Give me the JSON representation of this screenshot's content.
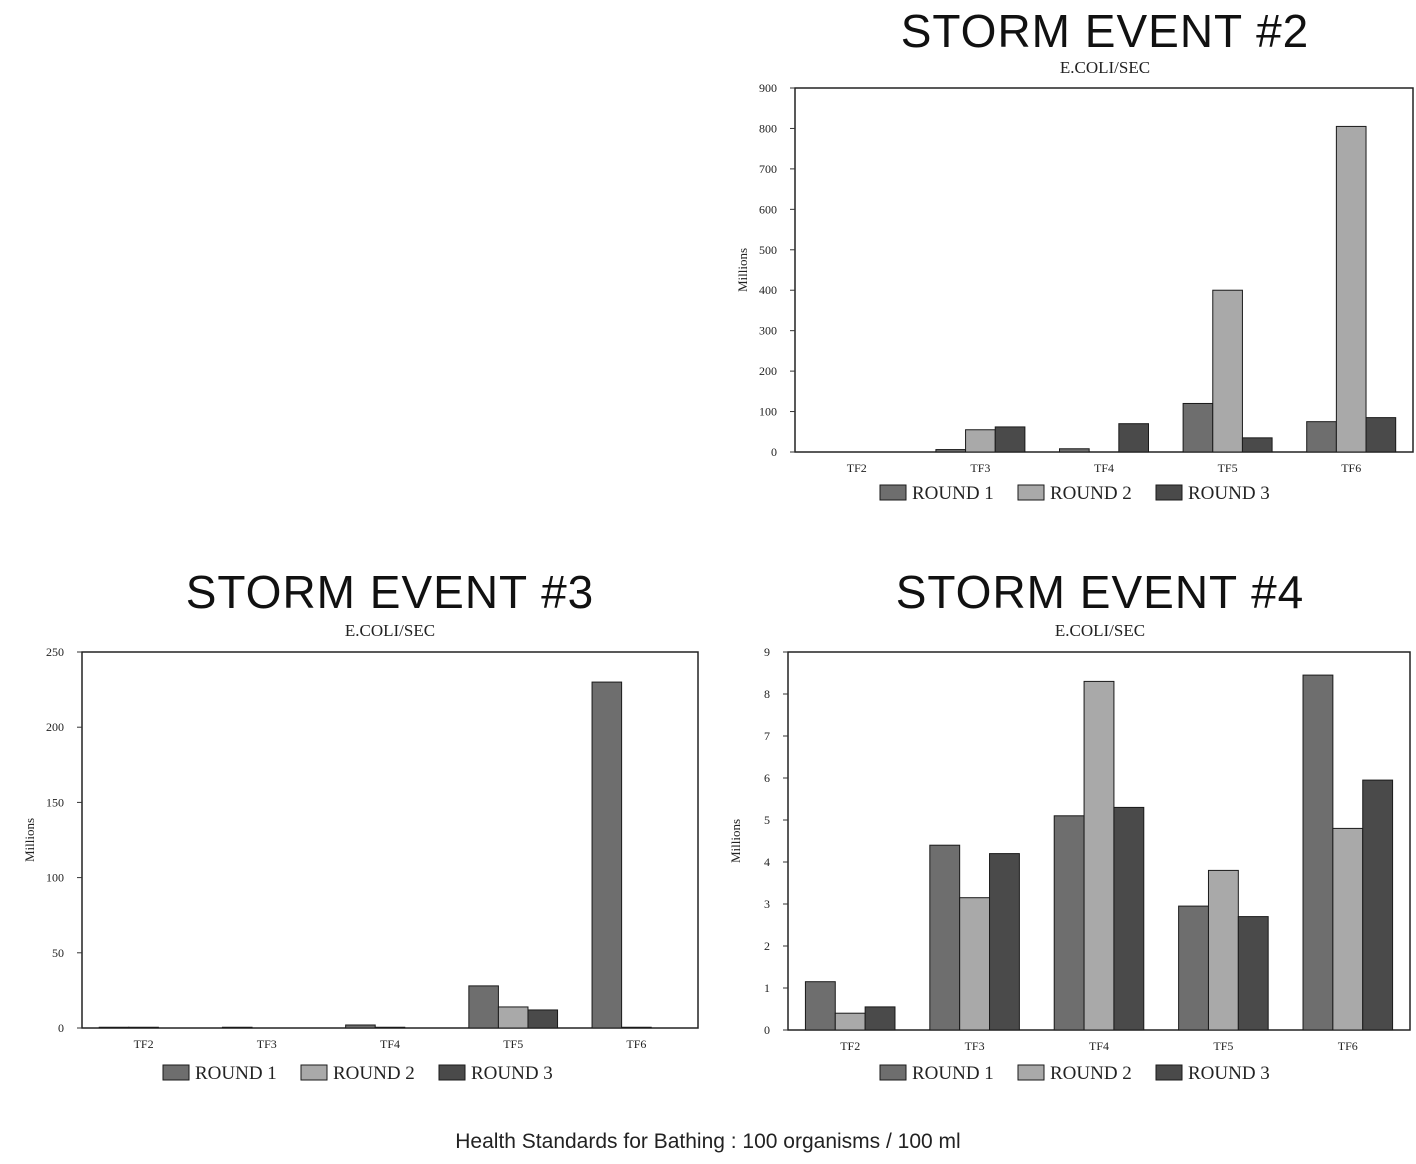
{
  "footnote": "Health Standards for Bathing : 100 organisms / 100 ml",
  "chart_data": [
    {
      "type": "bar",
      "title": "STORM EVENT #2",
      "subtitle": "E.COLI/SEC",
      "ylabel": "Millions",
      "ylim": [
        0,
        900
      ],
      "yticks": [
        "0",
        "100",
        "200",
        "300",
        "400",
        "500",
        "600",
        "700",
        "800",
        "900"
      ],
      "categories": [
        "TF2",
        "TF3",
        "TF4",
        "TF5",
        "TF6"
      ],
      "series": [
        {
          "name": "ROUND 1",
          "values": [
            0,
            6,
            8,
            120,
            75
          ]
        },
        {
          "name": "ROUND 2",
          "values": [
            0,
            55,
            0,
            400,
            805
          ]
        },
        {
          "name": "ROUND 3",
          "values": [
            0,
            62,
            70,
            35,
            85
          ]
        }
      ],
      "legend": "bottom",
      "grid": false
    },
    {
      "type": "bar",
      "title": "STORM EVENT #3",
      "subtitle": "E.COLI/SEC",
      "ylabel": "Millions",
      "ylim": [
        0,
        250
      ],
      "yticks": [
        "0",
        "50",
        "100",
        "150",
        "200",
        "250"
      ],
      "categories": [
        "TF2",
        "TF3",
        "TF4",
        "TF5",
        "TF6"
      ],
      "series": [
        {
          "name": "ROUND 1",
          "values": [
            0.5,
            0.5,
            2,
            28,
            230
          ]
        },
        {
          "name": "ROUND 2",
          "values": [
            0.5,
            0,
            0.5,
            14,
            0.5
          ]
        },
        {
          "name": "ROUND 3",
          "values": [
            0,
            0,
            0,
            12,
            0
          ]
        }
      ],
      "legend": "bottom",
      "grid": false
    },
    {
      "type": "bar",
      "title": "STORM EVENT #4",
      "subtitle": "E.COLI/SEC",
      "ylabel": "Millions",
      "ylim": [
        0,
        9
      ],
      "yticks": [
        "0",
        "1",
        "2",
        "3",
        "4",
        "5",
        "6",
        "7",
        "8",
        "9"
      ],
      "categories": [
        "TF2",
        "TF3",
        "TF4",
        "TF5",
        "TF6"
      ],
      "series": [
        {
          "name": "ROUND 1",
          "values": [
            1.15,
            4.4,
            5.1,
            2.95,
            8.45
          ]
        },
        {
          "name": "ROUND 2",
          "values": [
            0.4,
            3.15,
            8.3,
            3.8,
            4.8
          ]
        },
        {
          "name": "ROUND 3",
          "values": [
            0.55,
            4.2,
            5.3,
            2.7,
            5.95
          ]
        }
      ],
      "legend": "bottom",
      "grid": false
    }
  ],
  "colors": {
    "round1": "#6e6e6e",
    "round2": "#a9a9a9",
    "round3": "#4a4a4a",
    "frame": "#222222"
  }
}
